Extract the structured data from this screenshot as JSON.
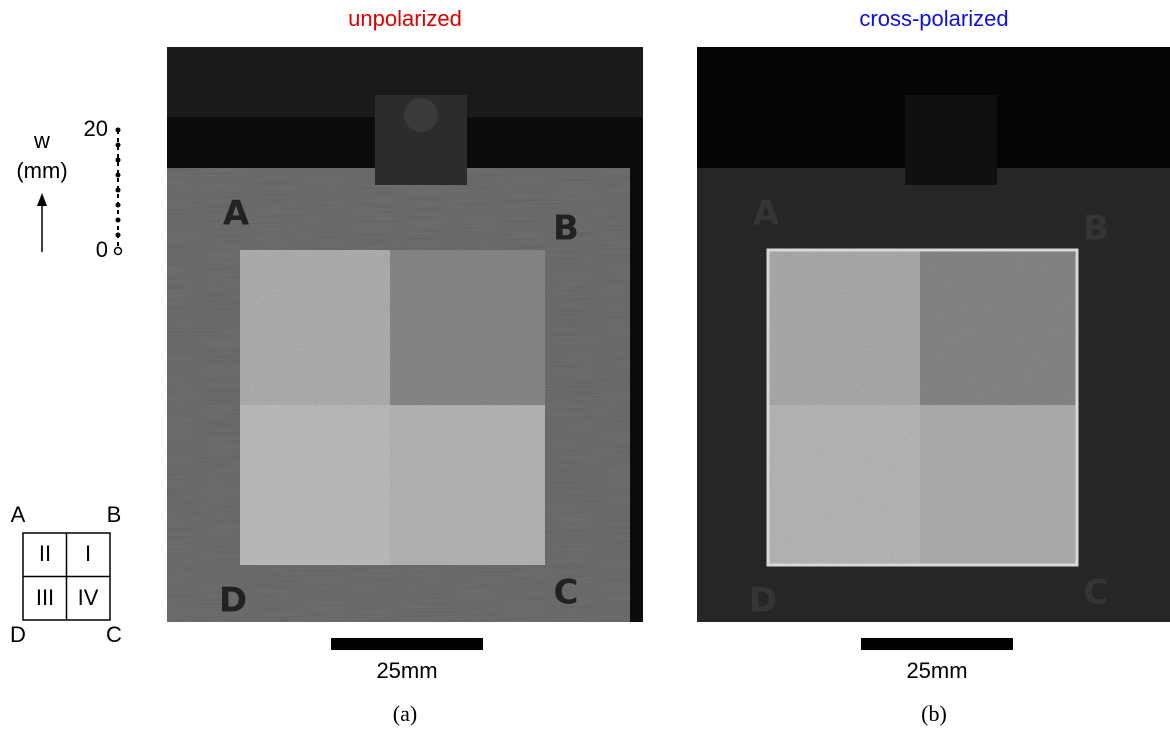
{
  "panels": [
    {
      "title": "unpolarized",
      "scale_bar": "25mm",
      "caption": "(a)",
      "photo_labels": [
        "A",
        "B",
        "C",
        "D"
      ]
    },
    {
      "title": "cross-polarized",
      "scale_bar": "25mm",
      "caption": "(b)",
      "photo_labels": [
        "A",
        "B",
        "C",
        "D"
      ]
    }
  ],
  "axis": {
    "label": "w",
    "unit": "(mm)",
    "ticks": [
      20,
      0
    ]
  },
  "key": {
    "corners": [
      "A",
      "B",
      "C",
      "D"
    ],
    "quadrants": [
      "I",
      "II",
      "III",
      "IV"
    ]
  }
}
